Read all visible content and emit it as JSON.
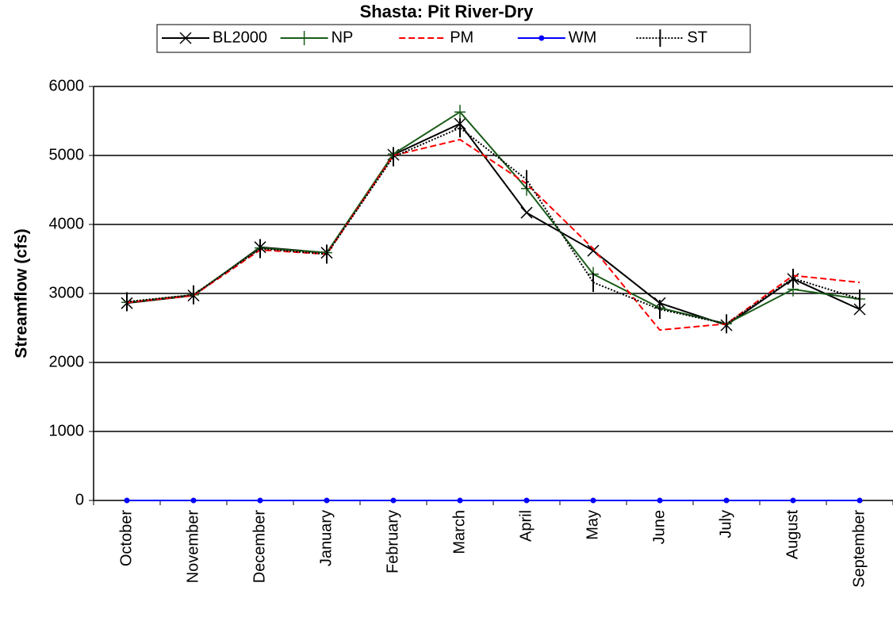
{
  "chart_data": {
    "type": "line",
    "title": "Shasta: Pit River-Dry",
    "y_label": "Streamflow (cfs)",
    "categories": [
      "October",
      "November",
      "December",
      "January",
      "February",
      "March",
      "April",
      "May",
      "June",
      "July",
      "August",
      "September"
    ],
    "series": [
      {
        "name": "BL2000",
        "color": "#000000",
        "dash": "solid",
        "marker": "x",
        "values": [
          2860,
          2970,
          3670,
          3590,
          5010,
          5460,
          4170,
          3620,
          2860,
          2540,
          3210,
          2770
        ]
      },
      {
        "name": "NP",
        "color": "#1a5c1a",
        "dash": "solid",
        "marker": "plus",
        "values": [
          2870,
          2980,
          3660,
          3590,
          5020,
          5630,
          4520,
          3280,
          2790,
          2560,
          3060,
          2920
        ]
      },
      {
        "name": "PM",
        "color": "#ff0000",
        "dash": "dashed",
        "marker": "none",
        "values": [
          2870,
          2970,
          3630,
          3570,
          5000,
          5230,
          4590,
          3650,
          2470,
          2560,
          3260,
          3160
        ]
      },
      {
        "name": "WM",
        "color": "#0000ff",
        "dash": "solid",
        "marker": "dot",
        "values": [
          0,
          0,
          0,
          0,
          0,
          0,
          0,
          0,
          0,
          0,
          0,
          0
        ]
      },
      {
        "name": "ST",
        "color": "#000000",
        "dash": "dotted",
        "marker": "tick",
        "values": [
          2880,
          2980,
          3650,
          3570,
          4980,
          5400,
          4650,
          3160,
          2770,
          2560,
          3220,
          2920
        ]
      }
    ],
    "ylim": [
      0,
      6000
    ],
    "yticks": [
      0,
      1000,
      2000,
      3000,
      4000,
      5000,
      6000
    ],
    "grid": true,
    "legend": "top"
  }
}
